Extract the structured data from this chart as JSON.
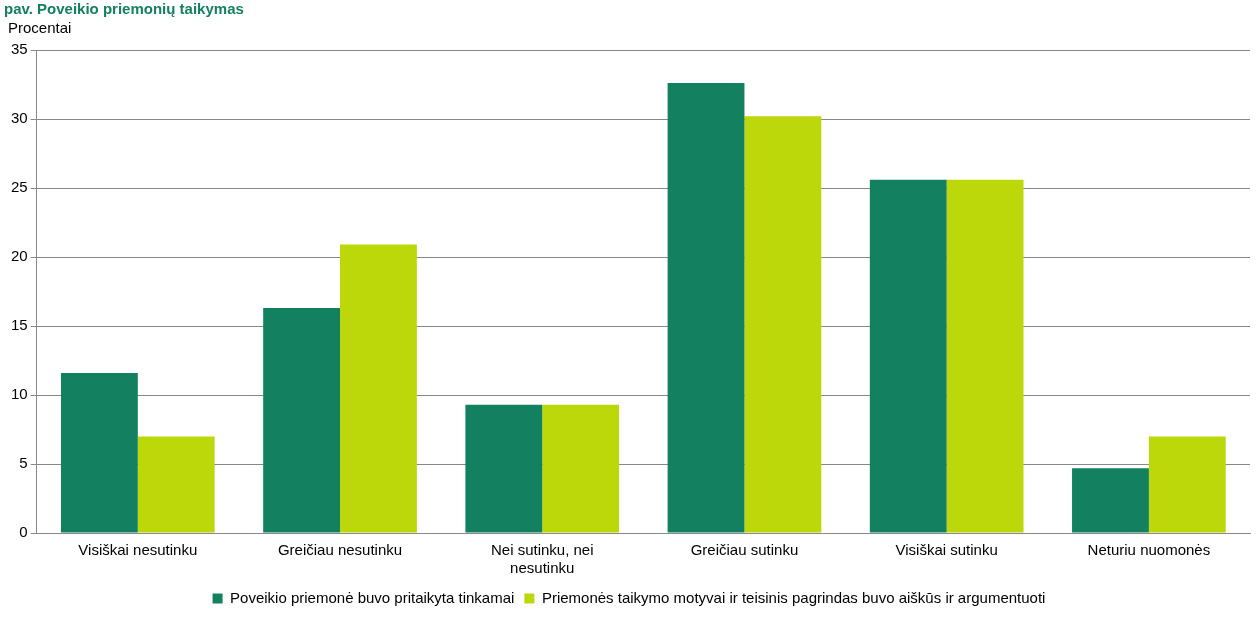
{
  "chart_data": {
    "type": "bar",
    "title": "pav. Poveikio priemonių taikymas",
    "ylabel": "Procentai",
    "categories": [
      "Visiškai nesutinku",
      "Greičiau nesutinku",
      "Nei sutinku, nei nesutinku",
      "Greičiau sutinku",
      "Visiškai sutinku",
      "Neturiu nuomonės"
    ],
    "series": [
      {
        "name": "Poveikio priemonė buvo pritaikyta tinkamai",
        "color": "#138060",
        "values": [
          11.6,
          16.3,
          9.3,
          32.6,
          25.6,
          4.7
        ]
      },
      {
        "name": "Priemonės taikymo motyvai ir teisinis pagrindas buvo aiškūs ir argumentuoti",
        "color": "#bcd80a",
        "values": [
          7.0,
          20.9,
          9.3,
          30.2,
          25.6,
          7.0
        ]
      }
    ],
    "ylim": [
      0,
      35
    ],
    "yticks": [
      0,
      5,
      10,
      15,
      20,
      25,
      30,
      35
    ],
    "grid": "y",
    "legend": "bottom"
  }
}
